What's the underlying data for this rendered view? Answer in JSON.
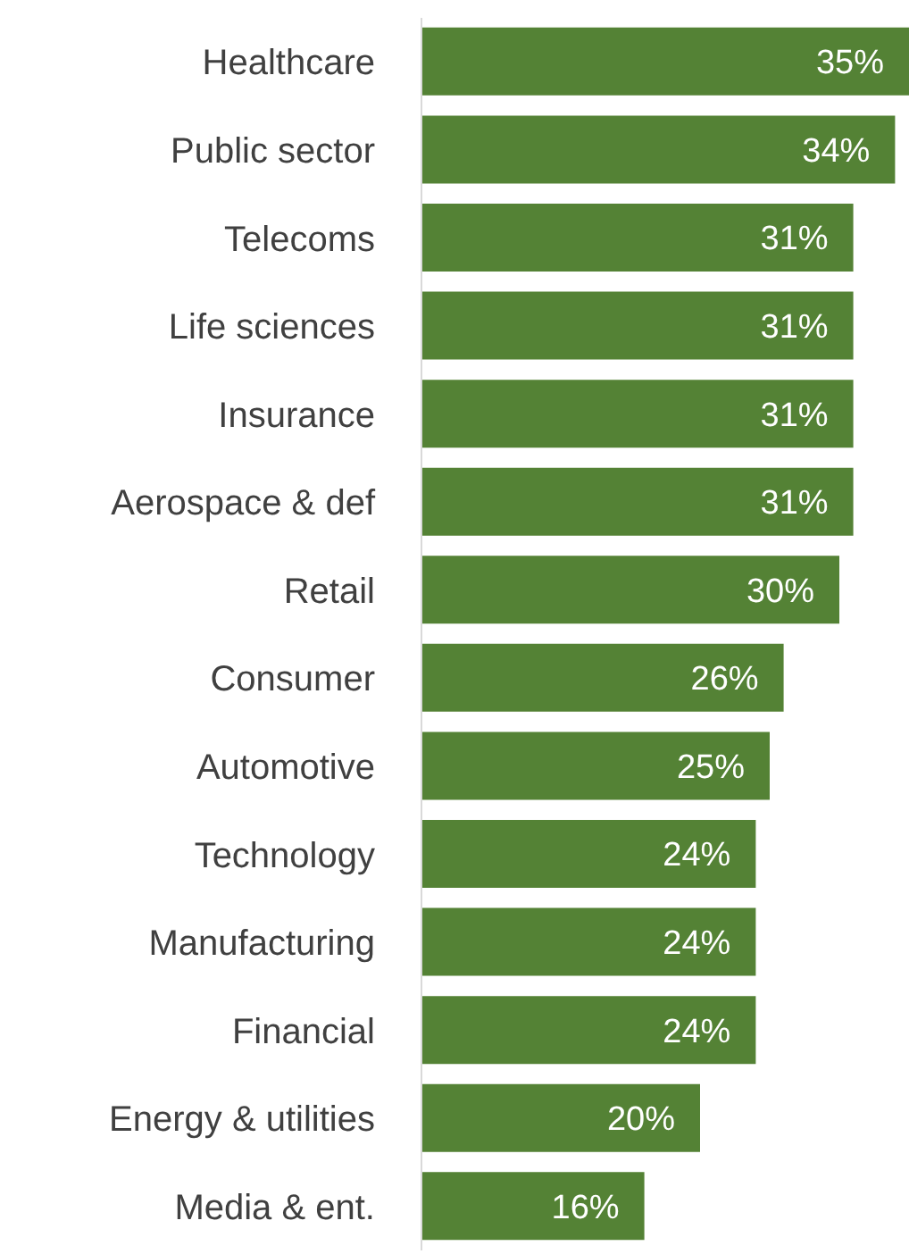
{
  "chart_data": {
    "type": "bar",
    "orientation": "horizontal",
    "categories": [
      "Healthcare",
      "Public sector",
      "Telecoms",
      "Life sciences",
      "Insurance",
      "Aerospace & def",
      "Retail",
      "Consumer",
      "Automotive",
      "Technology",
      "Manufacturing",
      "Financial",
      "Energy & utilities",
      "Media & ent."
    ],
    "values": [
      35,
      34,
      31,
      31,
      31,
      31,
      30,
      26,
      25,
      24,
      24,
      24,
      20,
      16
    ],
    "value_labels": [
      "35%",
      "34%",
      "31%",
      "31%",
      "31%",
      "31%",
      "30%",
      "26%",
      "25%",
      "24%",
      "24%",
      "24%",
      "20%",
      "16%"
    ],
    "color": "#548235",
    "xlim": [
      0,
      35
    ],
    "tick_labels": "y"
  }
}
